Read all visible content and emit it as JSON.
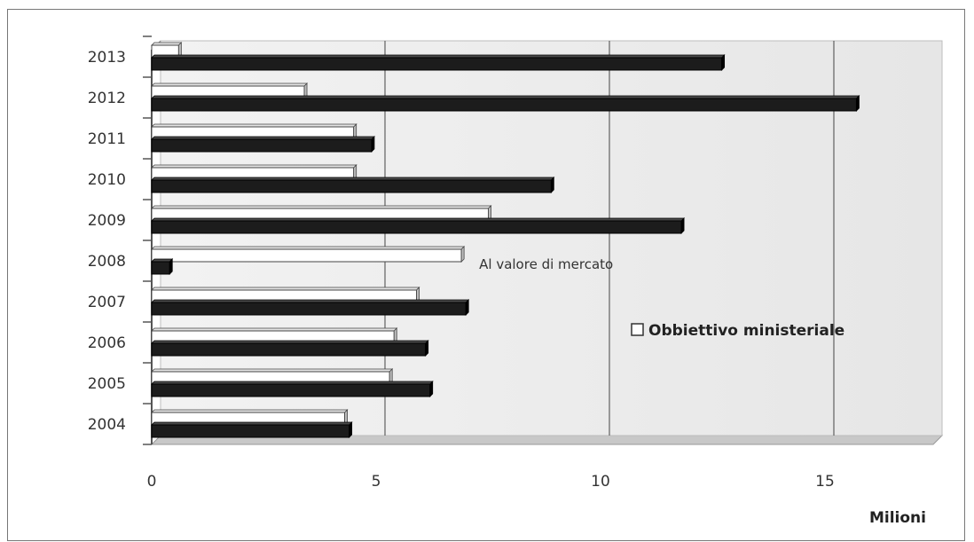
{
  "chart_data": {
    "type": "bar",
    "orientation": "horizontal",
    "categories": [
      "2004",
      "2005",
      "2006",
      "2007",
      "2008",
      "2009",
      "2010",
      "2011",
      "2012",
      "2013"
    ],
    "series": [
      {
        "name": "Obbiettivo ministeriale",
        "color": "#ffffff",
        "values": [
          4.3,
          5.3,
          5.4,
          5.9,
          6.9,
          7.5,
          4.5,
          4.5,
          3.4,
          0.6
        ]
      },
      {
        "name": "Al valore di mercato",
        "color": "#1a1a1a",
        "values": [
          4.4,
          6.2,
          6.1,
          7.0,
          0.4,
          11.8,
          8.9,
          4.9,
          15.7,
          12.7
        ]
      }
    ],
    "xticks": [
      "0",
      "5",
      "10",
      "15"
    ],
    "xlim": [
      0,
      17.5
    ],
    "xlabel": "Milioni",
    "grid": true,
    "annotations": [
      {
        "text": "Al valore di mercato",
        "category": "2008",
        "series": 1
      }
    ],
    "legend": {
      "position": "right",
      "entries": [
        "Obbiettivo ministeriale"
      ]
    }
  }
}
